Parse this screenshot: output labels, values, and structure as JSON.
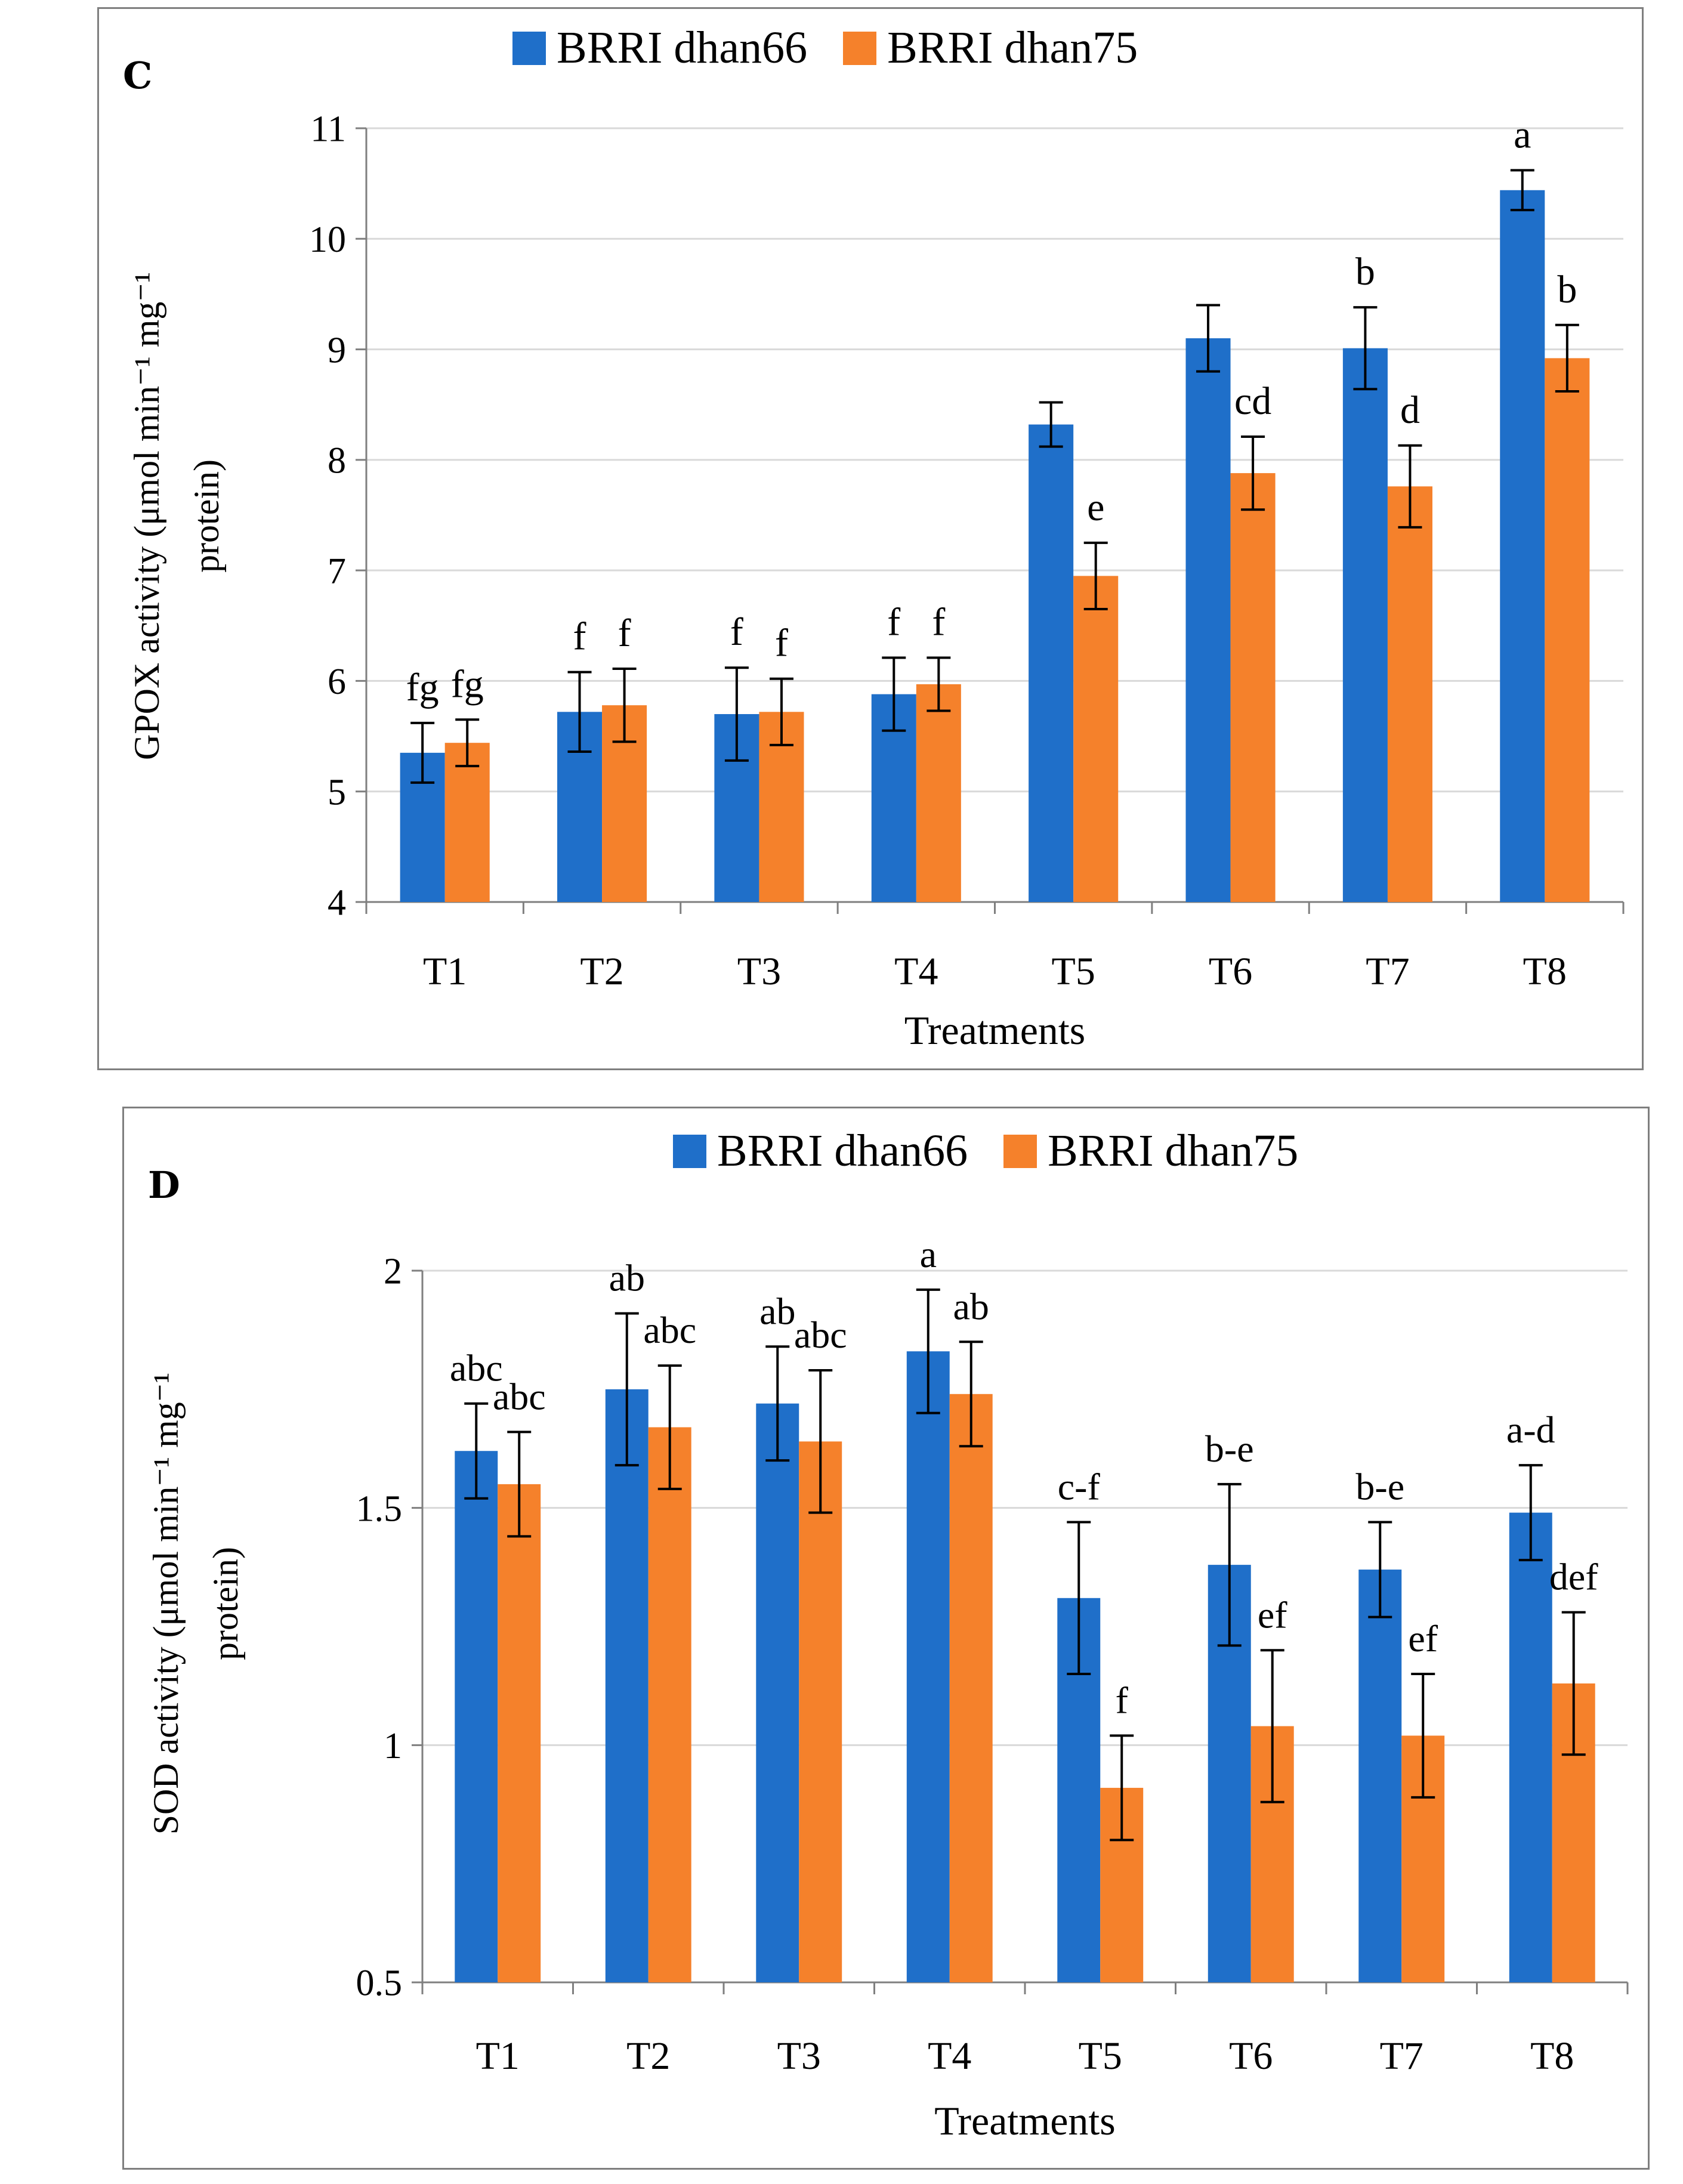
{
  "chart_data": [
    {
      "panel": "C",
      "type": "bar",
      "title": "",
      "xlabel": "Treatments",
      "ylabel": "GPOX activity (μmol min⁻¹ mg⁻¹ protein)",
      "ylabel_lines": [
        "GPOX activity (μmol min⁻¹ mg⁻¹",
        "protein)"
      ],
      "ylim": [
        4,
        11
      ],
      "yticks": [
        4,
        5,
        6,
        7,
        8,
        9,
        10,
        11
      ],
      "ytick_labels": [
        "4",
        "5",
        "6",
        "7",
        "8",
        "9",
        "10",
        "11"
      ],
      "grid": true,
      "legend_position": "top-center",
      "categories": [
        "T1",
        "T2",
        "T3",
        "T4",
        "T5",
        "T6",
        "T7",
        "T8"
      ],
      "series": [
        {
          "name": "BRRI dhan66",
          "color": "#1f6fc9",
          "values": [
            5.35,
            5.72,
            5.7,
            5.88,
            8.32,
            9.1,
            9.01,
            10.44
          ],
          "errors": [
            0.27,
            0.36,
            0.42,
            0.33,
            0.2,
            0.3,
            0.37,
            0.18
          ],
          "labels": [
            "fg",
            "f",
            "f",
            "f",
            "",
            "",
            "b",
            "a"
          ]
        },
        {
          "name": "BRRI dhan75",
          "color": "#f5812b",
          "values": [
            5.44,
            5.78,
            5.72,
            5.97,
            6.95,
            7.88,
            7.76,
            8.92
          ],
          "errors": [
            0.21,
            0.33,
            0.3,
            0.24,
            0.3,
            0.33,
            0.37,
            0.3
          ],
          "labels": [
            "fg",
            "f",
            "f",
            "f",
            "e",
            "cd",
            "d",
            "b"
          ]
        }
      ]
    },
    {
      "panel": "D",
      "type": "bar",
      "title": "",
      "xlabel": "Treatments",
      "ylabel": "SOD activity (μmol min⁻¹ mg⁻¹ protein)",
      "ylabel_lines": [
        "SOD activity (μmol min⁻¹ mg⁻¹",
        "protein)"
      ],
      "ylim": [
        0.5,
        2.0
      ],
      "yticks": [
        0.5,
        1,
        1.5,
        2
      ],
      "ytick_labels": [
        "0.5",
        "1",
        "1.5",
        "2"
      ],
      "grid": true,
      "legend_position": "top-center",
      "categories": [
        "T1",
        "T2",
        "T3",
        "T4",
        "T5",
        "T6",
        "T7",
        "T8"
      ],
      "series": [
        {
          "name": "BRRI dhan66",
          "color": "#1f6fc9",
          "values": [
            1.62,
            1.75,
            1.72,
            1.83,
            1.31,
            1.38,
            1.37,
            1.49
          ],
          "errors": [
            0.1,
            0.16,
            0.12,
            0.13,
            0.16,
            0.17,
            0.1,
            0.1
          ],
          "labels": [
            "abc",
            "ab",
            "ab",
            "a",
            "c-f",
            "b-e",
            "b-e",
            "a-d"
          ]
        },
        {
          "name": "BRRI dhan75",
          "color": "#f5812b",
          "values": [
            1.55,
            1.67,
            1.64,
            1.74,
            0.91,
            1.04,
            1.02,
            1.13
          ],
          "errors": [
            0.11,
            0.13,
            0.15,
            0.11,
            0.11,
            0.16,
            0.13,
            0.15
          ],
          "labels": [
            "abc",
            "abc",
            "abc",
            "ab",
            "f",
            "ef",
            "ef",
            "def"
          ]
        }
      ]
    }
  ]
}
